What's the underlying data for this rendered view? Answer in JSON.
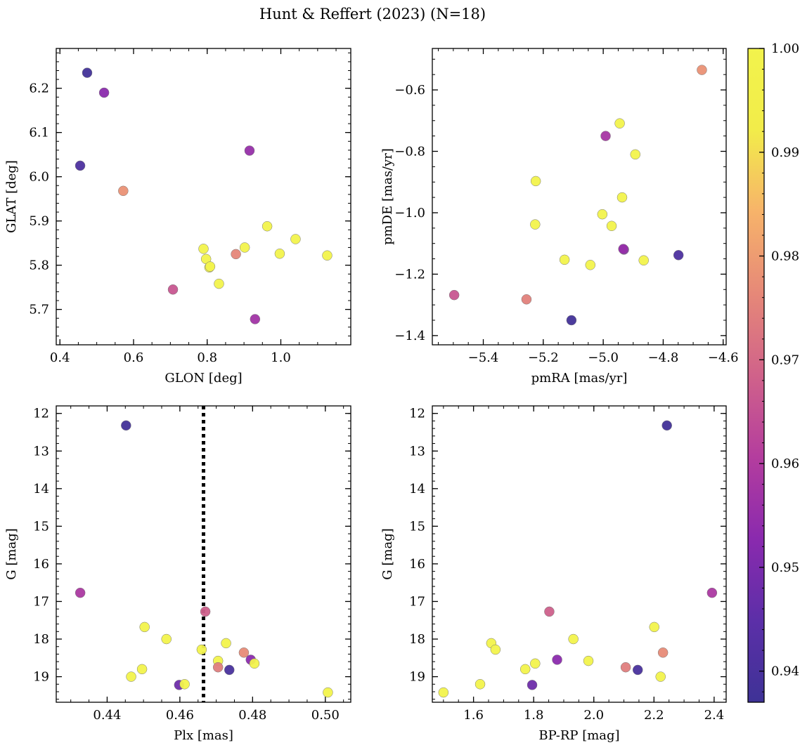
{
  "figure": {
    "title": "Hunt & Reffert (2023) (N=18)"
  },
  "colorbar": {
    "colormap": "plasma",
    "vmin": 0.937,
    "vmax": 1.0,
    "ticks": [
      0.94,
      0.95,
      0.96,
      0.97,
      0.98,
      0.99,
      1.0
    ],
    "tick_labels": [
      "0.94",
      "0.95",
      "0.96",
      "0.97",
      "0.98",
      "0.99",
      "1.00"
    ],
    "stops": [
      "#3e3296",
      "#5c2fa8",
      "#8a2aae",
      "#b43d9e",
      "#d0628a",
      "#e68878",
      "#f7b36a",
      "#f2ec4a",
      "#f2f34c"
    ]
  },
  "chart_data": [
    {
      "type": "scatter",
      "title": "",
      "xlabel": "GLON [deg]",
      "ylabel": "GLAT [deg]",
      "xlim": [
        0.39,
        1.19
      ],
      "ylim": [
        5.62,
        6.29
      ],
      "y_inverted": false,
      "xticks": [
        0.4,
        0.6,
        0.8,
        1.0
      ],
      "xtick_labels": [
        "0.4",
        "0.6",
        "0.8",
        "1.0"
      ],
      "yticks": [
        5.7,
        5.8,
        5.9,
        6.0,
        6.1,
        6.2
      ],
      "ytick_labels": [
        "5.7",
        "5.8",
        "5.9",
        "6.0",
        "6.1",
        "6.2"
      ],
      "x_minor_step": 0.05,
      "y_minor_step": 0.02,
      "x": [
        0.474,
        0.52,
        0.455,
        0.572,
        0.915,
        0.963,
        1.04,
        0.902,
        0.79,
        0.997,
        1.126,
        0.878,
        0.797,
        0.806,
        0.832,
        0.707,
        0.93,
        0.808
      ],
      "y": [
        6.235,
        6.19,
        6.025,
        5.968,
        6.059,
        5.888,
        5.859,
        5.84,
        5.837,
        5.826,
        5.822,
        5.825,
        5.814,
        5.795,
        5.758,
        5.745,
        5.678,
        5.797
      ],
      "prob": [
        0.938,
        0.953,
        0.941,
        0.978,
        0.955,
        1.0,
        1.0,
        1.0,
        1.0,
        1.0,
        1.0,
        0.976,
        1.0,
        1.0,
        1.0,
        0.966,
        0.957,
        1.0
      ]
    },
    {
      "type": "scatter",
      "title": "",
      "xlabel": "pmRA [mas/yr]",
      "ylabel": "pmDE [mas/yr]",
      "xlim": [
        -5.57,
        -4.59
      ],
      "ylim": [
        -1.43,
        -0.465
      ],
      "y_inverted": false,
      "xticks": [
        -5.4,
        -5.2,
        -5.0,
        -4.8,
        -4.6
      ],
      "xtick_labels": [
        "−5.4",
        "−5.2",
        "−5.0",
        "−4.8",
        "−4.6"
      ],
      "yticks": [
        -1.4,
        -1.2,
        -1.0,
        -0.8,
        -0.6
      ],
      "ytick_labels": [
        "−1.4",
        "−1.2",
        "−1.0",
        "−0.8",
        "−0.6"
      ],
      "x_minor_step": 0.05,
      "y_minor_step": 0.05,
      "x": [
        -4.671,
        -4.945,
        -4.992,
        -4.893,
        -5.225,
        -4.937,
        -5.003,
        -4.972,
        -5.227,
        -4.931,
        -4.749,
        -4.865,
        -5.129,
        -5.043,
        -5.497,
        -5.256,
        -5.106,
        -4.933
      ],
      "y": [
        -0.535,
        -0.709,
        -0.75,
        -0.81,
        -0.897,
        -0.95,
        -1.005,
        -1.043,
        -1.038,
        -1.12,
        -1.138,
        -1.155,
        -1.153,
        -1.17,
        -1.268,
        -1.282,
        -1.35,
        -1.118
      ],
      "prob": [
        0.978,
        1.0,
        0.958,
        1.0,
        1.0,
        1.0,
        1.0,
        1.0,
        1.0,
        0.952,
        0.941,
        1.0,
        1.0,
        1.0,
        0.966,
        0.975,
        0.938,
        0.955
      ]
    },
    {
      "type": "scatter",
      "title": "",
      "xlabel": "Plx [mas]",
      "ylabel": "G [mag]",
      "xlim": [
        0.426,
        0.507
      ],
      "ylim": [
        19.68,
        11.8
      ],
      "y_inverted": true,
      "xticks": [
        0.44,
        0.46,
        0.48,
        0.5
      ],
      "xtick_labels": [
        "0.44",
        "0.46",
        "0.48",
        "0.50"
      ],
      "yticks": [
        12,
        13,
        14,
        15,
        16,
        17,
        18,
        19
      ],
      "ytick_labels": [
        "12",
        "13",
        "14",
        "15",
        "16",
        "17",
        "18",
        "19"
      ],
      "x_minor_step": 0.005,
      "y_minor_step": 0.2,
      "reference_line": {
        "x": 0.4665,
        "style": "dotted"
      },
      "x": [
        0.4452,
        0.4326,
        0.467,
        0.4503,
        0.4563,
        0.4727,
        0.466,
        0.4776,
        0.4705,
        0.4795,
        0.4805,
        0.4705,
        0.4736,
        0.4496,
        0.4466,
        0.4598,
        0.4613,
        0.5007
      ],
      "y": [
        12.32,
        16.77,
        17.27,
        17.68,
        18.0,
        18.11,
        18.28,
        18.36,
        18.58,
        18.55,
        18.65,
        18.75,
        18.82,
        18.8,
        19.0,
        19.22,
        19.2,
        19.42
      ],
      "prob": [
        0.938,
        0.959,
        0.968,
        1.0,
        1.0,
        1.0,
        1.0,
        0.977,
        1.0,
        0.953,
        1.0,
        0.974,
        0.94,
        1.0,
        1.0,
        0.948,
        1.0,
        1.0
      ]
    },
    {
      "type": "scatter",
      "title": "",
      "xlabel": "BP-RP [mag]",
      "ylabel": "G [mag]",
      "xlim": [
        1.463,
        2.44
      ],
      "ylim": [
        19.68,
        11.8
      ],
      "y_inverted": true,
      "xticks": [
        1.6,
        1.8,
        2.0,
        2.2,
        2.4
      ],
      "xtick_labels": [
        "1.6",
        "1.8",
        "2.0",
        "2.2",
        "2.4"
      ],
      "yticks": [
        12,
        13,
        14,
        15,
        16,
        17,
        18,
        19
      ],
      "ytick_labels": [
        "12",
        "13",
        "14",
        "15",
        "16",
        "17",
        "18",
        "19"
      ],
      "x_minor_step": 0.05,
      "y_minor_step": 0.2,
      "x": [
        2.243,
        2.393,
        1.852,
        2.201,
        1.932,
        1.659,
        1.673,
        2.23,
        1.982,
        1.878,
        1.805,
        2.106,
        2.146,
        1.772,
        2.222,
        1.795,
        1.622,
        1.5
      ],
      "y": [
        12.32,
        16.77,
        17.27,
        17.68,
        18.0,
        18.11,
        18.28,
        18.36,
        18.58,
        18.55,
        18.65,
        18.75,
        18.82,
        18.8,
        19.0,
        19.22,
        19.2,
        19.42
      ],
      "prob": [
        0.938,
        0.959,
        0.968,
        1.0,
        1.0,
        1.0,
        1.0,
        0.977,
        1.0,
        0.953,
        1.0,
        0.974,
        0.94,
        1.0,
        1.0,
        0.948,
        1.0,
        1.0
      ]
    }
  ]
}
